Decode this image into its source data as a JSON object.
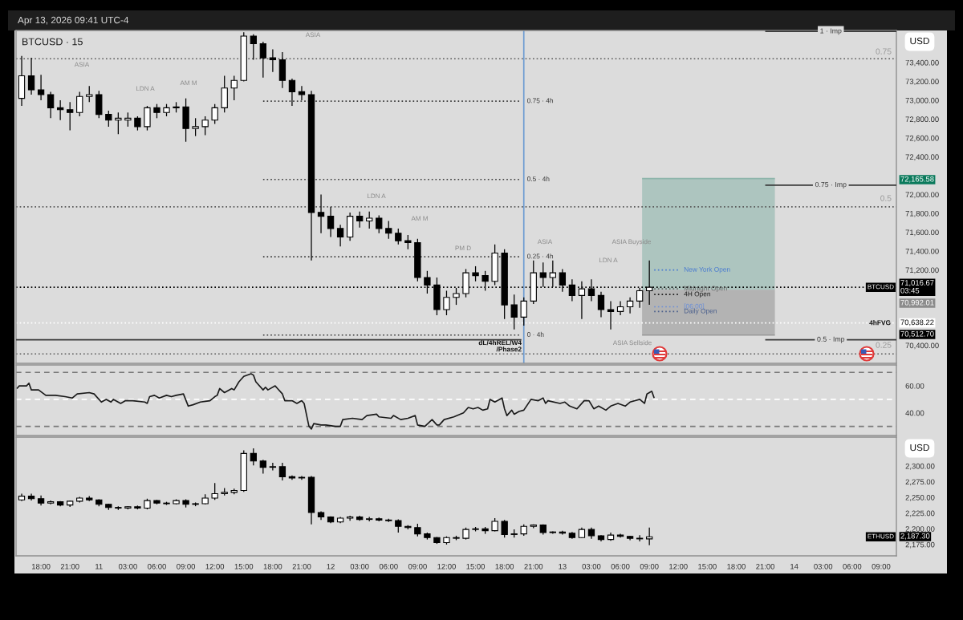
{
  "chart_data": [
    {
      "type": "candlestick",
      "title": "Apr 13, 2026 09:41 UTC-4",
      "subtitle": "BTCUSD · 15",
      "ylabel": "USD",
      "xlim": [
        "2026-04-10T15:25",
        "2026-04-14T10:35"
      ],
      "ylim": [
        70210,
        73740
      ],
      "yticks": [
        {
          "value": 73400,
          "label": "73,400.00"
        },
        {
          "value": 73200,
          "label": "73,200.00"
        },
        {
          "value": 73000,
          "label": "73,000.00"
        },
        {
          "value": 72800,
          "label": "72,800.00"
        },
        {
          "value": 72600,
          "label": "72,600.00"
        },
        {
          "value": 72400,
          "label": "72,400.00"
        },
        {
          "value": 72000,
          "label": "72,000.00"
        },
        {
          "value": 71800,
          "label": "71,800.00"
        },
        {
          "value": 71600,
          "label": "71,600.00"
        },
        {
          "value": 71400,
          "label": "71,400.00"
        },
        {
          "value": 71200,
          "label": "71,200.00"
        },
        {
          "value": 70400,
          "label": "70,400.00"
        }
      ],
      "tick_labels": "y",
      "ref_lines": [
        {
          "axis": "y",
          "value": 73440,
          "line_style": "dotted"
        },
        {
          "axis": "y",
          "value": 71870,
          "line_style": "dotted"
        },
        {
          "axis": "y",
          "value": 70310,
          "line_style": "dotted"
        },
        {
          "axis": "y",
          "value": 71016.67,
          "label": "71,016.67\n03:45",
          "color": "#000000",
          "line_style": "dotted"
        },
        {
          "axis": "y",
          "value": 70638.22,
          "label": "70,638.22",
          "color": "#ffffff",
          "line_style": "dotted"
        },
        {
          "axis": "x",
          "value": "2026-04-12T20:00",
          "color": "#6c9bd2",
          "line_style": "solid"
        }
      ],
      "annotations": [
        "0.75",
        "0.5",
        "0.25",
        "ASIA",
        "LDN A",
        "AM M",
        "ASIA",
        "LDN A",
        "AM M",
        "PM D",
        "ASIA",
        "ASIA Buyside",
        "LDN A",
        "ASIA Sellside",
        "dL/4hREL/W4\n/Phase2",
        "4hFVG",
        "72,165.58",
        "70,992.01",
        "70,512.70"
      ],
      "series": [
        {
          "type": "line",
          "x": [
            "2026-04-13T08:15",
            "2026-04-13T22:00"
          ],
          "values": [
            72170,
            72170
          ],
          "lower": [
            70990,
            70990
          ],
          "upper": [
            72170,
            72170
          ],
          "color": "#8db5ab"
        },
        {
          "type": "line",
          "x": [
            "2026-04-13T08:15",
            "2026-04-13T22:00"
          ],
          "values": [
            70510,
            70510
          ],
          "lower": [
            70510,
            70510
          ],
          "upper": [
            70990,
            70990
          ],
          "color": "#989898"
        },
        {
          "type": "candlestick",
          "name": "BTCUSD",
          "color": "#000000",
          "x": [
            "2026-04-10T16:00",
            "2026-04-10T17:00",
            "2026-04-10T18:00",
            "2026-04-10T19:00",
            "2026-04-10T20:00",
            "2026-04-10T21:00",
            "2026-04-10T22:00",
            "2026-04-10T23:00",
            "2026-04-11T00:00",
            "2026-04-11T01:00",
            "2026-04-11T02:00",
            "2026-04-11T03:00",
            "2026-04-11T04:00",
            "2026-04-11T05:00",
            "2026-04-11T06:00",
            "2026-04-11T07:00",
            "2026-04-11T08:00",
            "2026-04-11T09:00",
            "2026-04-11T10:00",
            "2026-04-11T11:00",
            "2026-04-11T12:00",
            "2026-04-11T13:00",
            "2026-04-11T14:00",
            "2026-04-11T15:00",
            "2026-04-11T16:00",
            "2026-04-11T17:00",
            "2026-04-11T18:00",
            "2026-04-11T19:00",
            "2026-04-11T20:00",
            "2026-04-11T21:00",
            "2026-04-11T22:00",
            "2026-04-11T23:00",
            "2026-04-12T00:00",
            "2026-04-12T01:00",
            "2026-04-12T02:00",
            "2026-04-12T03:00",
            "2026-04-12T04:00",
            "2026-04-12T05:00",
            "2026-04-12T06:00",
            "2026-04-12T07:00",
            "2026-04-12T08:00",
            "2026-04-12T09:00",
            "2026-04-12T10:00",
            "2026-04-12T11:00",
            "2026-04-12T12:00",
            "2026-04-12T13:00",
            "2026-04-12T14:00",
            "2026-04-12T15:00",
            "2026-04-12T16:00",
            "2026-04-12T17:00",
            "2026-04-12T18:00",
            "2026-04-12T19:00",
            "2026-04-12T20:00",
            "2026-04-12T21:00",
            "2026-04-12T22:00",
            "2026-04-12T23:00",
            "2026-04-13T00:00",
            "2026-04-13T01:00",
            "2026-04-13T02:00",
            "2026-04-13T03:00",
            "2026-04-13T04:00",
            "2026-04-13T05:00",
            "2026-04-13T06:00",
            "2026-04-13T07:00",
            "2026-04-13T08:00",
            "2026-04-13T09:00"
          ],
          "ohlc": [
            [
              73020,
              73470,
              72940,
              73260
            ],
            [
              73260,
              73450,
              73060,
              73110
            ],
            [
              73110,
              73270,
              73000,
              73060
            ],
            [
              73060,
              73090,
              72810,
              72920
            ],
            [
              72920,
              73000,
              72790,
              72900
            ],
            [
              72900,
              72980,
              72680,
              72870
            ],
            [
              72870,
              73090,
              72830,
              73040
            ],
            [
              73040,
              73150,
              72980,
              73060
            ],
            [
              73060,
              73100,
              72810,
              72850
            ],
            [
              72850,
              72890,
              72720,
              72790
            ],
            [
              72790,
              72870,
              72640,
              72810
            ],
            [
              72790,
              72870,
              72720,
              72810
            ],
            [
              72810,
              72830,
              72680,
              72720
            ],
            [
              72720,
              72940,
              72680,
              72920
            ],
            [
              72920,
              72960,
              72810,
              72870
            ],
            [
              72870,
              72960,
              72830,
              72920
            ],
            [
              72920,
              72980,
              72870,
              72930
            ],
            [
              72930,
              73020,
              72560,
              72700
            ],
            [
              72700,
              72810,
              72620,
              72720
            ],
            [
              72720,
              72830,
              72630,
              72790
            ],
            [
              72790,
              72960,
              72750,
              72920
            ],
            [
              72920,
              73260,
              72870,
              73130
            ],
            [
              73130,
              73260,
              73000,
              73210
            ],
            [
              73210,
              73720,
              73200,
              73680
            ],
            [
              73680,
              73700,
              73430,
              73600
            ],
            [
              73600,
              73620,
              73240,
              73450
            ],
            [
              73450,
              73540,
              73300,
              73430
            ],
            [
              73430,
              73510,
              73130,
              73210
            ],
            [
              73210,
              73230,
              72940,
              73090
            ],
            [
              73090,
              73150,
              73000,
              73060
            ],
            [
              73060,
              73100,
              71300,
              71810
            ],
            [
              71810,
              72000,
              71590,
              71770
            ],
            [
              71770,
              71870,
              71550,
              71640
            ],
            [
              71640,
              71680,
              71450,
              71550
            ],
            [
              71550,
              71810,
              71510,
              71770
            ],
            [
              71770,
              71820,
              71650,
              71720
            ],
            [
              71720,
              71820,
              71640,
              71750
            ],
            [
              71750,
              71780,
              71590,
              71640
            ],
            [
              71640,
              71720,
              71530,
              71590
            ],
            [
              71590,
              71640,
              71470,
              71510
            ],
            [
              71510,
              71570,
              71420,
              71490
            ],
            [
              71490,
              71530,
              71080,
              71120
            ],
            [
              71120,
              71190,
              70950,
              71040
            ],
            [
              71040,
              71120,
              70720,
              70780
            ],
            [
              70780,
              70980,
              70720,
              70910
            ],
            [
              70910,
              71010,
              70830,
              70950
            ],
            [
              70950,
              71210,
              70910,
              71170
            ],
            [
              71170,
              71240,
              71080,
              71140
            ],
            [
              71140,
              71190,
              70980,
              71080
            ],
            [
              71080,
              71470,
              71040,
              71380
            ],
            [
              71380,
              71420,
              70680,
              70830
            ],
            [
              70830,
              70940,
              70570,
              70700
            ],
            [
              70700,
              70910,
              70610,
              70870
            ],
            [
              70870,
              71300,
              70840,
              71170
            ],
            [
              71170,
              71280,
              71020,
              71120
            ],
            [
              71120,
              71300,
              71020,
              71170
            ],
            [
              71170,
              71210,
              70970,
              71040
            ],
            [
              71040,
              71100,
              70870,
              70930
            ],
            [
              70930,
              71080,
              70680,
              71000
            ],
            [
              71000,
              71100,
              70870,
              70930
            ],
            [
              70930,
              70970,
              70700,
              70780
            ],
            [
              70780,
              70870,
              70570,
              70760
            ],
            [
              70760,
              70870,
              70720,
              70810
            ],
            [
              70810,
              70910,
              70740,
              70870
            ],
            [
              70870,
              71010,
              70800,
              70980
            ],
            [
              70980,
              71300,
              70830,
              71016.67
            ]
          ],
          "colors": [
            "#ffffff",
            "#000000",
            "#000000",
            "#000000",
            "#000000",
            "#000000",
            "#ffffff",
            "#ffffff",
            "#000000",
            "#000000",
            "#ffffff",
            "#ffffff",
            "#000000",
            "#ffffff",
            "#000000",
            "#ffffff",
            "#ffffff",
            "#000000",
            "#ffffff",
            "#ffffff",
            "#ffffff",
            "#ffffff",
            "#ffffff",
            "#ffffff",
            "#000000",
            "#000000",
            "#000000",
            "#000000",
            "#000000",
            "#000000",
            "#000000",
            "#000000",
            "#000000",
            "#000000",
            "#ffffff",
            "#000000",
            "#ffffff",
            "#000000",
            "#000000",
            "#000000",
            "#000000",
            "#000000",
            "#000000",
            "#000000",
            "#ffffff",
            "#ffffff",
            "#ffffff",
            "#000000",
            "#000000",
            "#ffffff",
            "#000000",
            "#000000",
            "#ffffff",
            "#ffffff",
            "#000000",
            "#ffffff",
            "#000000",
            "#000000",
            "#ffffff",
            "#000000",
            "#000000",
            "#000000",
            "#ffffff",
            "#ffffff",
            "#ffffff",
            "#ffffff"
          ]
        },
        {
          "type": "line",
          "name": "0.75 · 4h",
          "x": [
            "2026-04-11T17:00",
            "2026-04-12T19:45"
          ],
          "values": [
            72990,
            72990
          ],
          "color": "#3a3a3a",
          "line_style": "dotted"
        },
        {
          "type": "line",
          "name": "0.5 · 4h",
          "x": [
            "2026-04-11T17:00",
            "2026-04-12T19:45"
          ],
          "values": [
            72160,
            72160
          ],
          "color": "#3a3a3a",
          "line_style": "dotted"
        },
        {
          "type": "line",
          "name": "0.25 · 4h",
          "x": [
            "2026-04-11T17:00",
            "2026-04-12T19:45"
          ],
          "values": [
            71340,
            71340
          ],
          "color": "#3a3a3a",
          "line_style": "dotted"
        },
        {
          "type": "line",
          "name": "0 · 4h",
          "x": [
            "2026-04-11T17:00",
            "2026-04-12T19:45"
          ],
          "values": [
            70510,
            70510
          ],
          "color": "#3a3a3a",
          "line_style": "dotted"
        },
        {
          "type": "line",
          "x": [
            "2026-04-10T15:25",
            "2026-04-12T19:45"
          ],
          "values": [
            70460,
            70460
          ],
          "color": "#3a3a3a",
          "line_style": "solid"
        },
        {
          "type": "line",
          "name": "1 · Imp",
          "x": [
            "2026-04-13T21:00",
            "2026-04-14T10:35"
          ],
          "values": [
            73730,
            73730
          ],
          "color": "#3a3a3a",
          "line_style": "solid"
        },
        {
          "type": "line",
          "name": "0.75 · Imp",
          "x": [
            "2026-04-13T21:00",
            "2026-04-14T10:35"
          ],
          "values": [
            72100,
            72100
          ],
          "color": "#3a3a3a",
          "line_style": "solid"
        },
        {
          "type": "line",
          "name": "0.5 · Imp",
          "x": [
            "2026-04-13T21:00",
            "2026-04-14T10:35"
          ],
          "values": [
            70460,
            70460
          ],
          "color": "#3a3a3a",
          "line_style": "solid"
        },
        {
          "type": "line",
          "name": "New York Open",
          "x": [
            "2026-04-13T09:30",
            "2026-04-13T12:00"
          ],
          "values": [
            71200,
            71200
          ],
          "color": "#4a7bd0",
          "line_style": "dotted"
        },
        {
          "type": "line",
          "name": "Midnight Open",
          "x": [
            "2026-04-13T09:30",
            "2026-04-13T12:00"
          ],
          "values": [
            71000,
            71000
          ],
          "color": "#6a6a6a",
          "line_style": "dotted"
        },
        {
          "type": "line",
          "name": "4H Open",
          "x": [
            "2026-04-13T09:30",
            "2026-04-13T12:00"
          ],
          "values": [
            70940,
            70940
          ],
          "color": "#1c1c1c",
          "line_style": "dotted"
        },
        {
          "type": "line",
          "name": "[06:00]",
          "x": [
            "2026-04-13T09:30",
            "2026-04-13T12:00"
          ],
          "values": [
            70810,
            70810
          ],
          "color": "#6b8fd8",
          "line_style": "dotted"
        },
        {
          "type": "line",
          "name": "Daily Open",
          "x": [
            "2026-04-13T09:30",
            "2026-04-13T12:00"
          ],
          "values": [
            70760,
            70760
          ],
          "color": "#4a5f8c",
          "line_style": "dotted"
        }
      ]
    },
    {
      "type": "line",
      "color": "#1a1a1a",
      "xlim": [
        "2026-04-10T15:25",
        "2026-04-14T10:35"
      ],
      "ylim": [
        23.2,
        75.5
      ],
      "yticks": [
        {
          "value": 60,
          "label": "60.00"
        },
        {
          "value": 40,
          "label": "40.00"
        }
      ],
      "tick_labels": "y",
      "ref_lines": [
        {
          "axis": "y",
          "value": 70,
          "color": "#7a7a7a",
          "line_style": "dashed"
        },
        {
          "axis": "y",
          "value": 50,
          "color": "#ffffff",
          "line_style": "dashed"
        },
        {
          "axis": "y",
          "value": 30,
          "color": "#7a7a7a",
          "line_style": "dashed"
        }
      ],
      "x": [
        "2026-04-10T15:30",
        "2026-04-10T15:45",
        "2026-04-10T16:30",
        "2026-04-10T16:45",
        "2026-04-10T17:00",
        "2026-04-10T17:45",
        "2026-04-10T18:30",
        "2026-04-10T19:30",
        "2026-04-10T20:30",
        "2026-04-10T21:15",
        "2026-04-10T21:45",
        "2026-04-10T23:00",
        "2026-04-10T23:30",
        "2026-04-11T00:15",
        "2026-04-11T00:45",
        "2026-04-11T01:15",
        "2026-04-11T01:30",
        "2026-04-11T02:15",
        "2026-04-11T02:45",
        "2026-04-11T03:30",
        "2026-04-11T04:45",
        "2026-04-11T05:00",
        "2026-04-11T05:15",
        "2026-04-11T05:45",
        "2026-04-11T06:15",
        "2026-04-11T07:00",
        "2026-04-11T07:30",
        "2026-04-11T08:00",
        "2026-04-11T08:45",
        "2026-04-11T09:15",
        "2026-04-11T09:45",
        "2026-04-11T10:30",
        "2026-04-11T11:30",
        "2026-04-11T12:00",
        "2026-04-11T12:15",
        "2026-04-11T12:30",
        "2026-04-11T13:00",
        "2026-04-11T13:45",
        "2026-04-11T14:00",
        "2026-04-11T14:30",
        "2026-04-11T15:00",
        "2026-04-11T15:45",
        "2026-04-11T16:00",
        "2026-04-11T16:15",
        "2026-04-11T17:00",
        "2026-04-11T17:15",
        "2026-04-11T17:30",
        "2026-04-11T18:15",
        "2026-04-11T18:30",
        "2026-04-11T19:00",
        "2026-04-11T19:15",
        "2026-04-11T20:00",
        "2026-04-11T20:30",
        "2026-04-11T21:00",
        "2026-04-11T21:15",
        "2026-04-11T21:45",
        "2026-04-11T22:00",
        "2026-04-11T22:15",
        "2026-04-11T23:00",
        "2026-04-11T23:30",
        "2026-04-12T00:30",
        "2026-04-12T01:00",
        "2026-04-12T01:15",
        "2026-04-12T02:15",
        "2026-04-12T03:15",
        "2026-04-12T03:45",
        "2026-04-12T04:45",
        "2026-04-12T05:00",
        "2026-04-12T06:15",
        "2026-04-12T06:30",
        "2026-04-12T07:15",
        "2026-04-12T08:00",
        "2026-04-12T08:45",
        "2026-04-12T09:00",
        "2026-04-12T09:45",
        "2026-04-12T10:30",
        "2026-04-12T11:00",
        "2026-04-12T11:15",
        "2026-04-12T11:45",
        "2026-04-12T12:45",
        "2026-04-12T13:45",
        "2026-04-12T14:15",
        "2026-04-12T14:45",
        "2026-04-12T15:15",
        "2026-04-12T15:45",
        "2026-04-12T16:15",
        "2026-04-12T16:30",
        "2026-04-12T17:00",
        "2026-04-12T17:45",
        "2026-04-12T18:00",
        "2026-04-12T18:15",
        "2026-04-12T18:45",
        "2026-04-12T19:00",
        "2026-04-12T19:30",
        "2026-04-12T20:00",
        "2026-04-12T20:45",
        "2026-04-12T21:30",
        "2026-04-12T22:00",
        "2026-04-12T22:15",
        "2026-04-12T22:30",
        "2026-04-12T23:45",
        "2026-04-13T00:15",
        "2026-04-13T00:45",
        "2026-04-13T01:30",
        "2026-04-13T02:15",
        "2026-04-13T02:45",
        "2026-04-13T03:15",
        "2026-04-13T03:45",
        "2026-04-13T04:30",
        "2026-04-13T05:00",
        "2026-04-13T05:45",
        "2026-04-13T06:30",
        "2026-04-13T07:00",
        "2026-04-13T08:00",
        "2026-04-13T08:30",
        "2026-04-13T08:45",
        "2026-04-13T09:15",
        "2026-04-13T09:30"
      ],
      "values": [
        58,
        60,
        60,
        62,
        57,
        57,
        53,
        53,
        52,
        51,
        54,
        55,
        54,
        48,
        50,
        48,
        50,
        47,
        49,
        49,
        48,
        47,
        52,
        53,
        51,
        53,
        52,
        53,
        54,
        45,
        46,
        48,
        49,
        52,
        53,
        58,
        55,
        58,
        57,
        63,
        67,
        69,
        68,
        63,
        57,
        59,
        57,
        60,
        58,
        54,
        49,
        49,
        47,
        49,
        47,
        30,
        28,
        32,
        31,
        31,
        30,
        30,
        35,
        36,
        35,
        38,
        39,
        37,
        36,
        38,
        35,
        36,
        38,
        31,
        30,
        35,
        31,
        31,
        35,
        37,
        40,
        44,
        43,
        44,
        42,
        43,
        50,
        48,
        51,
        43,
        38,
        42,
        39,
        41,
        42,
        50,
        49,
        51,
        47,
        49,
        47,
        48,
        45,
        43,
        49,
        49,
        43,
        45,
        42,
        45,
        47,
        45,
        48,
        50,
        47,
        54,
        56,
        51
      ]
    },
    {
      "type": "candlestick",
      "ylabel": "USD",
      "xlim": [
        "2026-04-10T15:25",
        "2026-04-14T10:35"
      ],
      "ylim": [
        2157,
        2346
      ],
      "yticks": [
        {
          "value": 2300,
          "label": "2,300.00"
        },
        {
          "value": 2275,
          "label": "2,275.00"
        },
        {
          "value": 2250,
          "label": "2,250.00"
        },
        {
          "value": 2225,
          "label": "2,225.00"
        },
        {
          "value": 2200,
          "label": "2,200.00"
        },
        {
          "value": 2175,
          "label": "2,175.00"
        }
      ],
      "xticks": [
        {
          "value": "2026-04-10T18:00",
          "label": "18:00"
        },
        {
          "value": "2026-04-10T21:00",
          "label": "21:00"
        },
        {
          "value": "2026-04-11T00:00",
          "label": "11"
        },
        {
          "value": "2026-04-11T03:00",
          "label": "03:00"
        },
        {
          "value": "2026-04-11T06:00",
          "label": "06:00"
        },
        {
          "value": "2026-04-11T09:00",
          "label": "09:00"
        },
        {
          "value": "2026-04-11T12:00",
          "label": "12:00"
        },
        {
          "value": "2026-04-11T15:00",
          "label": "15:00"
        },
        {
          "value": "2026-04-11T18:00",
          "label": "18:00"
        },
        {
          "value": "2026-04-11T21:00",
          "label": "21:00"
        },
        {
          "value": "2026-04-12T00:00",
          "label": "12"
        },
        {
          "value": "2026-04-12T03:00",
          "label": "03:00"
        },
        {
          "value": "2026-04-12T06:00",
          "label": "06:00"
        },
        {
          "value": "2026-04-12T09:00",
          "label": "09:00"
        },
        {
          "value": "2026-04-12T12:00",
          "label": "12:00"
        },
        {
          "value": "2026-04-12T15:00",
          "label": "15:00"
        },
        {
          "value": "2026-04-12T18:00",
          "label": "18:00"
        },
        {
          "value": "2026-04-12T21:00",
          "label": "21:00"
        },
        {
          "value": "2026-04-13T00:00",
          "label": "13"
        },
        {
          "value": "2026-04-13T03:00",
          "label": "03:00"
        },
        {
          "value": "2026-04-13T06:00",
          "label": "06:00"
        },
        {
          "value": "2026-04-13T09:00",
          "label": "09:00"
        },
        {
          "value": "2026-04-13T12:00",
          "label": "12:00"
        },
        {
          "value": "2026-04-13T15:00",
          "label": "15:00"
        },
        {
          "value": "2026-04-13T18:00",
          "label": "18:00"
        },
        {
          "value": "2026-04-13T21:00",
          "label": "21:00"
        },
        {
          "value": "2026-04-14T00:00",
          "label": "14"
        },
        {
          "value": "2026-04-14T03:00",
          "label": "03:00"
        },
        {
          "value": "2026-04-14T06:00",
          "label": "06:00"
        },
        {
          "value": "2026-04-14T09:00",
          "label": "09:00"
        }
      ],
      "annotations": [
        "2,187.30"
      ],
      "series": [
        {
          "type": "candlestick",
          "name": "ETHUSD",
          "color": "#000000",
          "x": [
            "2026-04-10T16:00",
            "2026-04-10T17:00",
            "2026-04-10T18:00",
            "2026-04-10T19:00",
            "2026-04-10T20:00",
            "2026-04-10T21:00",
            "2026-04-10T22:00",
            "2026-04-10T23:00",
            "2026-04-11T00:00",
            "2026-04-11T01:00",
            "2026-04-11T02:00",
            "2026-04-11T03:00",
            "2026-04-11T04:00",
            "2026-04-11T05:00",
            "2026-04-11T06:00",
            "2026-04-11T07:00",
            "2026-04-11T08:00",
            "2026-04-11T09:00",
            "2026-04-11T10:00",
            "2026-04-11T11:00",
            "2026-04-11T12:00",
            "2026-04-11T13:00",
            "2026-04-11T14:00",
            "2026-04-11T15:00",
            "2026-04-11T16:00",
            "2026-04-11T17:00",
            "2026-04-11T18:00",
            "2026-04-11T19:00",
            "2026-04-11T20:00",
            "2026-04-11T21:00",
            "2026-04-11T22:00",
            "2026-04-11T23:00",
            "2026-04-12T00:00",
            "2026-04-12T01:00",
            "2026-04-12T02:00",
            "2026-04-12T03:00",
            "2026-04-12T04:00",
            "2026-04-12T05:00",
            "2026-04-12T06:00",
            "2026-04-12T07:00",
            "2026-04-12T08:00",
            "2026-04-12T09:00",
            "2026-04-12T10:00",
            "2026-04-12T11:00",
            "2026-04-12T12:00",
            "2026-04-12T13:00",
            "2026-04-12T14:00",
            "2026-04-12T15:00",
            "2026-04-12T16:00",
            "2026-04-12T17:00",
            "2026-04-12T18:00",
            "2026-04-12T19:00",
            "2026-04-12T20:00",
            "2026-04-12T21:00",
            "2026-04-12T22:00",
            "2026-04-12T23:00",
            "2026-04-13T00:00",
            "2026-04-13T01:00",
            "2026-04-13T02:00",
            "2026-04-13T03:00",
            "2026-04-13T04:00",
            "2026-04-13T05:00",
            "2026-04-13T06:00",
            "2026-04-13T07:00",
            "2026-04-13T08:00",
            "2026-04-13T09:00"
          ],
          "ohlc": [
            [
              2246,
              2256,
              2244,
              2252
            ],
            [
              2252,
              2256,
              2245,
              2248
            ],
            [
              2248,
              2253,
              2237,
              2241
            ],
            [
              2241,
              2245,
              2239,
              2243
            ],
            [
              2243,
              2244,
              2236,
              2238
            ],
            [
              2238,
              2245,
              2235,
              2244
            ],
            [
              2244,
              2251,
              2242,
              2249
            ],
            [
              2249,
              2252,
              2244,
              2246
            ],
            [
              2246,
              2247,
              2236,
              2239
            ],
            [
              2239,
              2240,
              2230,
              2234
            ],
            [
              2234,
              2236,
              2230,
              2233
            ],
            [
              2233,
              2236,
              2231,
              2235
            ],
            [
              2235,
              2237,
              2231,
              2233
            ],
            [
              2233,
              2248,
              2231,
              2245
            ],
            [
              2245,
              2246,
              2239,
              2241
            ],
            [
              2241,
              2243,
              2238,
              2240
            ],
            [
              2240,
              2247,
              2239,
              2245
            ],
            [
              2245,
              2247,
              2234,
              2239
            ],
            [
              2239,
              2242,
              2236,
              2240
            ],
            [
              2240,
              2255,
              2239,
              2249
            ],
            [
              2249,
              2273,
              2246,
              2256
            ],
            [
              2256,
              2265,
              2253,
              2258
            ],
            [
              2258,
              2264,
              2255,
              2261
            ],
            [
              2261,
              2325,
              2259,
              2320
            ],
            [
              2320,
              2328,
              2301,
              2308
            ],
            [
              2308,
              2310,
              2288,
              2298
            ],
            [
              2298,
              2305,
              2293,
              2299
            ],
            [
              2299,
              2305,
              2277,
              2283
            ],
            [
              2283,
              2285,
              2278,
              2281
            ],
            [
              2281,
              2284,
              2278,
              2282
            ],
            [
              2282,
              2284,
              2207,
              2226
            ],
            [
              2226,
              2228,
              2214,
              2219
            ],
            [
              2219,
              2220,
              2209,
              2211
            ],
            [
              2211,
              2219,
              2209,
              2217
            ],
            [
              2217,
              2221,
              2213,
              2219
            ],
            [
              2219,
              2221,
              2213,
              2215
            ],
            [
              2215,
              2219,
              2212,
              2216
            ],
            [
              2216,
              2218,
              2212,
              2214
            ],
            [
              2214,
              2216,
              2211,
              2213
            ],
            [
              2213,
              2215,
              2194,
              2204
            ],
            [
              2204,
              2206,
              2199,
              2202
            ],
            [
              2202,
              2208,
              2188,
              2192
            ],
            [
              2192,
              2194,
              2183,
              2186
            ],
            [
              2186,
              2187,
              2176,
              2178
            ],
            [
              2178,
              2188,
              2175,
              2186
            ],
            [
              2186,
              2189,
              2182,
              2185
            ],
            [
              2185,
              2202,
              2183,
              2199
            ],
            [
              2199,
              2203,
              2196,
              2200
            ],
            [
              2200,
              2203,
              2192,
              2197
            ],
            [
              2197,
              2217,
              2196,
              2212
            ],
            [
              2212,
              2214,
              2186,
              2191
            ],
            [
              2191,
              2199,
              2186,
              2192
            ],
            [
              2192,
              2207,
              2189,
              2204
            ],
            [
              2204,
              2207,
              2201,
              2206
            ],
            [
              2206,
              2207,
              2191,
              2194
            ],
            [
              2194,
              2196,
              2192,
              2195
            ],
            [
              2195,
              2197,
              2191,
              2193
            ],
            [
              2193,
              2195,
              2184,
              2186
            ],
            [
              2186,
              2202,
              2185,
              2199
            ],
            [
              2199,
              2202,
              2184,
              2189
            ],
            [
              2189,
              2190,
              2180,
              2183
            ],
            [
              2183,
              2194,
              2181,
              2190
            ],
            [
              2190,
              2192,
              2186,
              2188
            ],
            [
              2188,
              2189,
              2182,
              2185
            ],
            [
              2185,
              2190,
              2180,
              2184
            ],
            [
              2184,
              2202,
              2174,
              2187.3
            ]
          ],
          "colors": [
            "#ffffff",
            "#000000",
            "#000000",
            "#ffffff",
            "#000000",
            "#ffffff",
            "#ffffff",
            "#000000",
            "#000000",
            "#000000",
            "#000000",
            "#ffffff",
            "#000000",
            "#ffffff",
            "#000000",
            "#000000",
            "#ffffff",
            "#000000",
            "#ffffff",
            "#ffffff",
            "#ffffff",
            "#ffffff",
            "#ffffff",
            "#ffffff",
            "#000000",
            "#000000",
            "#ffffff",
            "#000000",
            "#000000",
            "#ffffff",
            "#000000",
            "#000000",
            "#000000",
            "#ffffff",
            "#ffffff",
            "#000000",
            "#ffffff",
            "#000000",
            "#000000",
            "#000000",
            "#000000",
            "#000000",
            "#000000",
            "#000000",
            "#ffffff",
            "#000000",
            "#ffffff",
            "#ffffff",
            "#000000",
            "#ffffff",
            "#000000",
            "#ffffff",
            "#ffffff",
            "#ffffff",
            "#000000",
            "#ffffff",
            "#000000",
            "#000000",
            "#ffffff",
            "#000000",
            "#000000",
            "#ffffff",
            "#000000",
            "#000000",
            "#000000",
            "#ffffff"
          ]
        }
      ]
    }
  ]
}
